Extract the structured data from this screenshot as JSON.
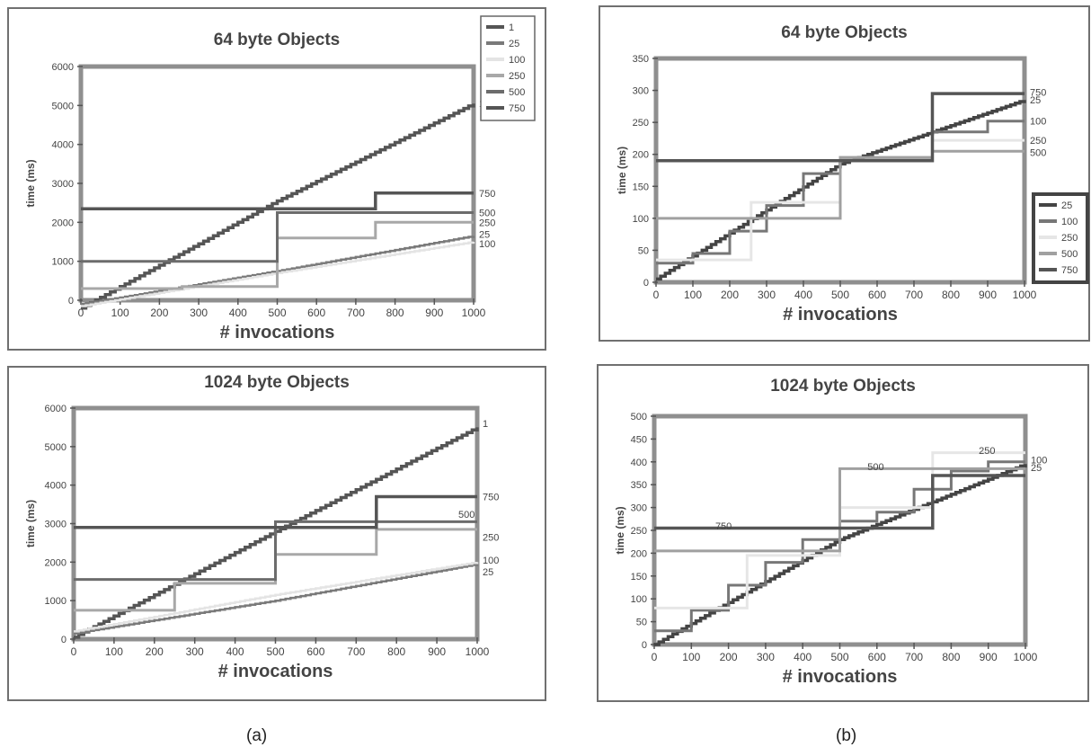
{
  "captions": {
    "left": "(a)",
    "right": "(b)"
  },
  "chart_data": [
    {
      "id": "a-top",
      "type": "line",
      "title": "64 byte Objects",
      "xlabel": "#  invocations",
      "ylabel": "time (ms)",
      "xlim": [
        0,
        1000
      ],
      "ylim": [
        0,
        6000
      ],
      "xticks": [
        "0",
        "100",
        "200",
        "300",
        "400",
        "500",
        "600",
        "700",
        "800",
        "900",
        "1000"
      ],
      "yticks": [
        "0",
        "1000",
        "2000",
        "3000",
        "4000",
        "5000",
        "6000"
      ],
      "legend": {
        "position": "top-right",
        "boxed": true,
        "entries": [
          "1",
          "25",
          "100",
          "250",
          "500",
          "750"
        ]
      },
      "series": [
        {
          "name": "1",
          "color": "#555555",
          "width": 3.5,
          "jag": true,
          "points": [
            [
              0,
              -200
            ],
            [
              500,
              2550
            ],
            [
              1000,
              5050
            ]
          ]
        },
        {
          "name": "25",
          "color": "#7a7a7a",
          "width": 2.5,
          "jag": true,
          "points": [
            [
              0,
              -100
            ],
            [
              500,
              750
            ],
            [
              1000,
              1650
            ]
          ]
        },
        {
          "name": "100",
          "color": "#e4e4e4",
          "width": 2.5,
          "jag": true,
          "points": [
            [
              0,
              -150
            ],
            [
              500,
              700
            ],
            [
              1000,
              1500
            ]
          ]
        },
        {
          "name": "250",
          "color": "#a8a8a8",
          "width": 3,
          "step": true,
          "points": [
            [
              0,
              300
            ],
            [
              258,
              300
            ],
            [
              258,
              350
            ],
            [
              500,
              350
            ],
            [
              500,
              1600
            ],
            [
              750,
              1600
            ],
            [
              750,
              2000
            ],
            [
              1000,
              2000
            ]
          ]
        },
        {
          "name": "500",
          "color": "#6c6c6c",
          "width": 3,
          "step": true,
          "points": [
            [
              0,
              1000
            ],
            [
              500,
              1000
            ],
            [
              500,
              2250
            ],
            [
              1000,
              2250
            ]
          ]
        },
        {
          "name": "750",
          "color": "#555555",
          "width": 3.5,
          "step": true,
          "points": [
            [
              0,
              2350
            ],
            [
              750,
              2350
            ],
            [
              750,
              2750
            ],
            [
              1000,
              2750
            ]
          ]
        }
      ],
      "end_labels": [
        {
          "text": "1",
          "x": 1000,
          "y": 5050
        },
        {
          "text": "750",
          "x": 1000,
          "y": 2750
        },
        {
          "text": "500",
          "x": 1000,
          "y": 2250
        },
        {
          "text": "250",
          "x": 1000,
          "y": 2000
        },
        {
          "text": "25",
          "x": 1000,
          "y": 1700
        },
        {
          "text": "100",
          "x": 1000,
          "y": 1450
        }
      ]
    },
    {
      "id": "a-bottom",
      "type": "line",
      "title": "1024 byte Objects",
      "xlabel": "#  invocations",
      "ylabel": "time (ms)",
      "xlim": [
        0,
        1000
      ],
      "ylim": [
        0,
        6000
      ],
      "xticks": [
        "0",
        "100",
        "200",
        "300",
        "400",
        "500",
        "600",
        "700",
        "800",
        "900",
        "1000"
      ],
      "yticks": [
        "0",
        "1000",
        "2000",
        "3000",
        "4000",
        "5000",
        "6000"
      ],
      "series": [
        {
          "name": "1",
          "color": "#555555",
          "width": 3.5,
          "jag": true,
          "points": [
            [
              0,
              50
            ],
            [
              500,
              2800
            ],
            [
              1000,
              5500
            ]
          ]
        },
        {
          "name": "25",
          "color": "#7a7a7a",
          "width": 2.5,
          "jag": true,
          "points": [
            [
              0,
              150
            ],
            [
              500,
              1000
            ],
            [
              1000,
              1950
            ]
          ]
        },
        {
          "name": "100",
          "color": "#e4e4e4",
          "width": 2.5,
          "jag": true,
          "points": [
            [
              0,
              200
            ],
            [
              500,
              1150
            ],
            [
              1000,
              2000
            ]
          ]
        },
        {
          "name": "250",
          "color": "#a8a8a8",
          "width": 3,
          "step": true,
          "points": [
            [
              0,
              750
            ],
            [
              250,
              750
            ],
            [
              250,
              1450
            ],
            [
              500,
              1450
            ],
            [
              500,
              2200
            ],
            [
              750,
              2200
            ],
            [
              750,
              2850
            ],
            [
              1000,
              2850
            ]
          ]
        },
        {
          "name": "500",
          "color": "#6c6c6c",
          "width": 3,
          "step": true,
          "points": [
            [
              0,
              1550
            ],
            [
              500,
              1550
            ],
            [
              500,
              3050
            ],
            [
              1000,
              3050
            ]
          ]
        },
        {
          "name": "750",
          "color": "#555555",
          "width": 3.5,
          "step": true,
          "points": [
            [
              0,
              2900
            ],
            [
              750,
              2900
            ],
            [
              750,
              3700
            ],
            [
              1000,
              3700
            ]
          ]
        }
      ],
      "end_labels": [
        {
          "text": "1",
          "x": 1000,
          "y": 5600
        },
        {
          "text": "750",
          "x": 1000,
          "y": 3700
        },
        {
          "text": "500",
          "x": 940,
          "y": 3250
        },
        {
          "text": "250",
          "x": 1000,
          "y": 2650
        },
        {
          "text": "100",
          "x": 1000,
          "y": 2050
        },
        {
          "text": "25",
          "x": 1000,
          "y": 1750
        }
      ]
    },
    {
      "id": "b-top",
      "type": "line",
      "title": "64 byte Objects",
      "xlabel": "#  invocations",
      "ylabel": "time (ms)",
      "xlim": [
        0,
        1000
      ],
      "ylim": [
        0,
        350
      ],
      "xticks": [
        "0",
        "100",
        "200",
        "300",
        "400",
        "500",
        "600",
        "700",
        "800",
        "900",
        "1000"
      ],
      "yticks": [
        "0",
        "50",
        "100",
        "150",
        "200",
        "250",
        "300",
        "350"
      ],
      "legend": {
        "position": "right",
        "boxed": true,
        "entries": [
          "25",
          "100",
          "250",
          "500",
          "750"
        ]
      },
      "series": [
        {
          "name": "25",
          "color": "#444444",
          "width": 3.5,
          "jag": true,
          "points": [
            [
              0,
              5
            ],
            [
              500,
              185
            ],
            [
              1000,
              285
            ]
          ]
        },
        {
          "name": "100",
          "color": "#777777",
          "width": 3,
          "step": true,
          "points": [
            [
              0,
              30
            ],
            [
              100,
              30
            ],
            [
              100,
              45
            ],
            [
              200,
              45
            ],
            [
              200,
              80
            ],
            [
              300,
              80
            ],
            [
              300,
              120
            ],
            [
              400,
              120
            ],
            [
              400,
              170
            ],
            [
              500,
              170
            ],
            [
              500,
              195
            ],
            [
              750,
              195
            ],
            [
              750,
              235
            ],
            [
              900,
              235
            ],
            [
              900,
              252
            ],
            [
              1000,
              252
            ]
          ]
        },
        {
          "name": "250",
          "color": "#e6e6e6",
          "width": 3,
          "step": true,
          "points": [
            [
              0,
              35
            ],
            [
              258,
              35
            ],
            [
              258,
              125
            ],
            [
              500,
              125
            ],
            [
              500,
              190
            ],
            [
              750,
              190
            ],
            [
              750,
              222
            ],
            [
              1000,
              222
            ]
          ]
        },
        {
          "name": "500",
          "color": "#a0a0a0",
          "width": 3,
          "step": true,
          "points": [
            [
              0,
              100
            ],
            [
              500,
              100
            ],
            [
              500,
              195
            ],
            [
              750,
              195
            ],
            [
              750,
              205
            ],
            [
              1000,
              205
            ]
          ]
        },
        {
          "name": "750",
          "color": "#555555",
          "width": 3.5,
          "step": true,
          "points": [
            [
              0,
              190
            ],
            [
              750,
              190
            ],
            [
              750,
              295
            ],
            [
              1000,
              295
            ]
          ]
        }
      ],
      "end_labels": [
        {
          "text": "750",
          "x": 1000,
          "y": 297
        },
        {
          "text": "25",
          "x": 1000,
          "y": 285
        },
        {
          "text": "100",
          "x": 1000,
          "y": 252
        },
        {
          "text": "250",
          "x": 1000,
          "y": 222
        },
        {
          "text": "500",
          "x": 1000,
          "y": 203
        }
      ]
    },
    {
      "id": "b-bottom",
      "type": "line",
      "title": "1024 byte Objects",
      "xlabel": "#  invocations",
      "ylabel": "time (ms)",
      "xlim": [
        0,
        1000
      ],
      "ylim": [
        0,
        500
      ],
      "xticks": [
        "0",
        "100",
        "200",
        "300",
        "400",
        "500",
        "600",
        "700",
        "800",
        "900",
        "1000"
      ],
      "yticks": [
        "0",
        "50",
        "100",
        "150",
        "200",
        "250",
        "300",
        "350",
        "400",
        "450",
        "500"
      ],
      "series": [
        {
          "name": "25",
          "color": "#444444",
          "width": 3.5,
          "jag": true,
          "points": [
            [
              0,
              0
            ],
            [
              500,
              230
            ],
            [
              1000,
              395
            ]
          ]
        },
        {
          "name": "100",
          "color": "#777777",
          "width": 3,
          "step": true,
          "points": [
            [
              0,
              30
            ],
            [
              100,
              30
            ],
            [
              100,
              75
            ],
            [
              200,
              75
            ],
            [
              200,
              130
            ],
            [
              300,
              130
            ],
            [
              300,
              180
            ],
            [
              400,
              180
            ],
            [
              400,
              230
            ],
            [
              500,
              230
            ],
            [
              500,
              270
            ],
            [
              600,
              270
            ],
            [
              600,
              290
            ],
            [
              700,
              290
            ],
            [
              700,
              340
            ],
            [
              800,
              340
            ],
            [
              800,
              380
            ],
            [
              900,
              380
            ],
            [
              900,
              400
            ],
            [
              1000,
              400
            ]
          ]
        },
        {
          "name": "250",
          "color": "#e6e6e6",
          "width": 3,
          "step": true,
          "points": [
            [
              0,
              80
            ],
            [
              250,
              80
            ],
            [
              250,
              195
            ],
            [
              500,
              195
            ],
            [
              500,
              300
            ],
            [
              750,
              300
            ],
            [
              750,
              420
            ],
            [
              1000,
              420
            ]
          ]
        },
        {
          "name": "500",
          "color": "#a0a0a0",
          "width": 3,
          "step": true,
          "points": [
            [
              0,
              205
            ],
            [
              500,
              205
            ],
            [
              500,
              385
            ],
            [
              1000,
              385
            ]
          ]
        },
        {
          "name": "750",
          "color": "#555555",
          "width": 3.5,
          "step": true,
          "points": [
            [
              0,
              255
            ],
            [
              750,
              255
            ],
            [
              750,
              370
            ],
            [
              1000,
              370
            ]
          ]
        }
      ],
      "end_labels": [
        {
          "text": "750",
          "x": 150,
          "y": 260
        },
        {
          "text": "500",
          "x": 560,
          "y": 390
        },
        {
          "text": "250",
          "x": 860,
          "y": 425
        },
        {
          "text": "100",
          "x": 1000,
          "y": 405
        },
        {
          "text": "25",
          "x": 1000,
          "y": 388
        }
      ]
    }
  ]
}
